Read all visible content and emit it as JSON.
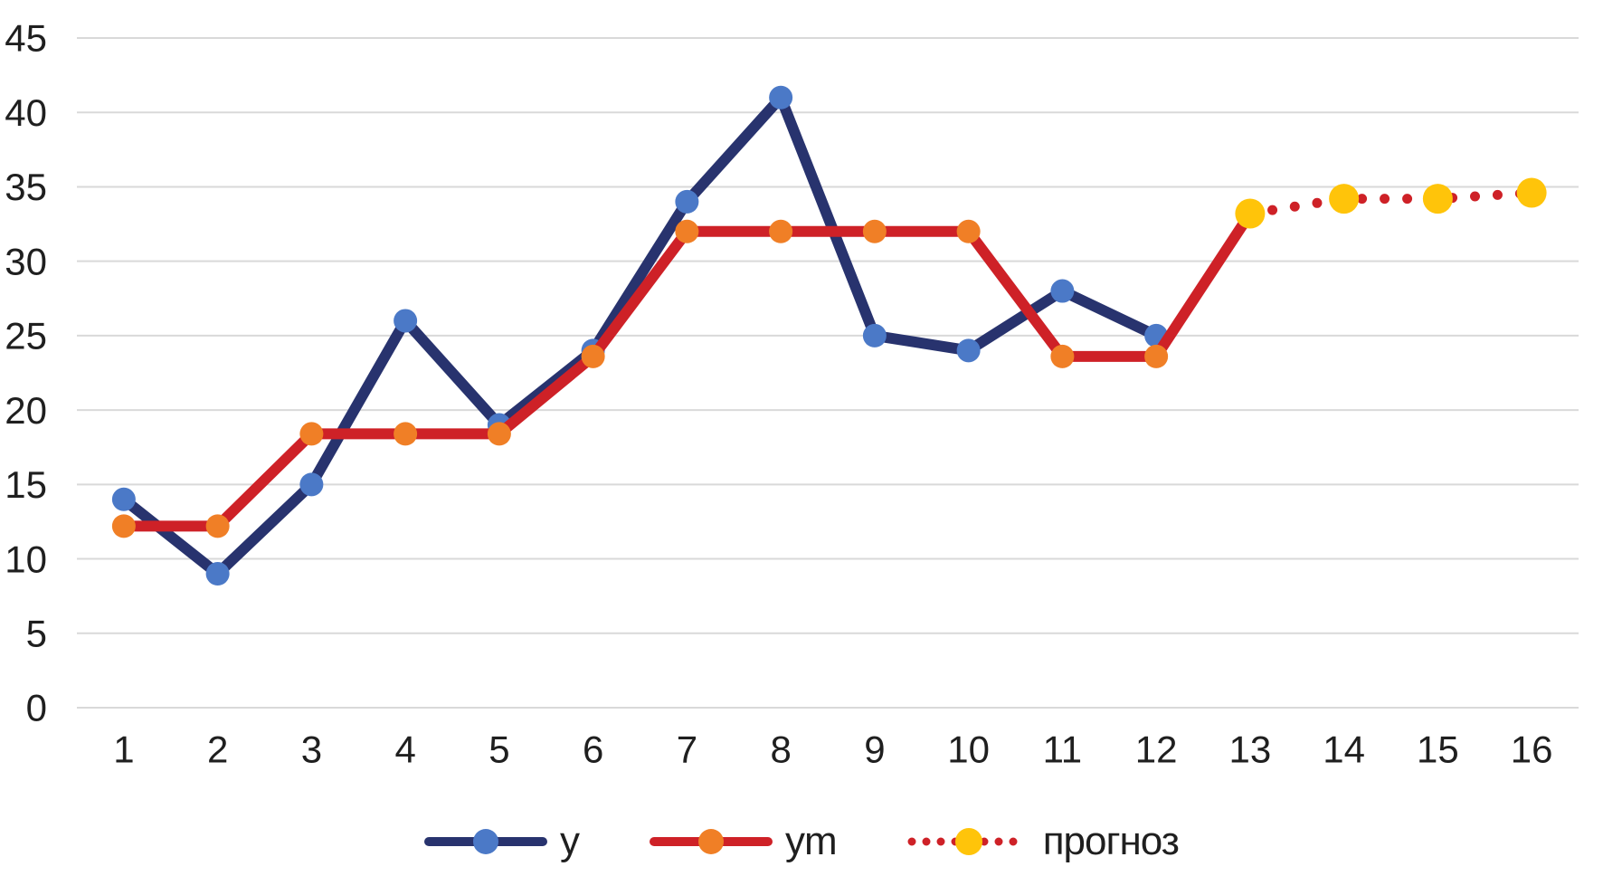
{
  "chart_data": {
    "type": "line",
    "title": "",
    "xlabel": "",
    "ylabel": "",
    "x_categories": [
      1,
      2,
      3,
      4,
      5,
      6,
      7,
      8,
      9,
      10,
      11,
      12,
      13,
      14,
      15,
      16
    ],
    "ylim": [
      0,
      45
    ],
    "yticks": [
      0,
      5,
      10,
      15,
      20,
      25,
      30,
      35,
      40,
      45
    ],
    "grid": "horizontal",
    "gridline_color": "#d9d9d9",
    "background_color": "#ffffff",
    "axis_text_color": "#1f1f1f",
    "legend_position": "bottom-center",
    "series": [
      {
        "id": "y",
        "name": "y",
        "style": "solid",
        "x": [
          1,
          2,
          3,
          4,
          5,
          6,
          7,
          8,
          9,
          10,
          11,
          12
        ],
        "values": [
          14,
          9,
          15,
          26,
          19,
          24,
          34,
          41,
          25,
          24,
          28,
          25
        ],
        "line_color": "#28336e",
        "marker_color": "#4b79c7",
        "marker": "circle"
      },
      {
        "id": "ym",
        "name": "ym",
        "style": "solid",
        "x": [
          1,
          2,
          3,
          4,
          5,
          6,
          7,
          8,
          9,
          10,
          11,
          12,
          13
        ],
        "values": [
          12.2,
          12.2,
          18.4,
          18.4,
          18.4,
          23.6,
          32,
          32,
          32,
          32,
          23.6,
          23.6,
          33.2
        ],
        "line_color": "#ce2127",
        "marker_color": "#f07f26",
        "marker": "circle"
      },
      {
        "id": "prognoz",
        "name": "прогноз",
        "style": "dotted",
        "x": [
          13,
          14,
          15,
          16
        ],
        "values": [
          33.2,
          34.2,
          34.2,
          34.6
        ],
        "line_color": "#ce2127",
        "marker_color": "#ffc40a",
        "marker": "circle"
      }
    ]
  }
}
